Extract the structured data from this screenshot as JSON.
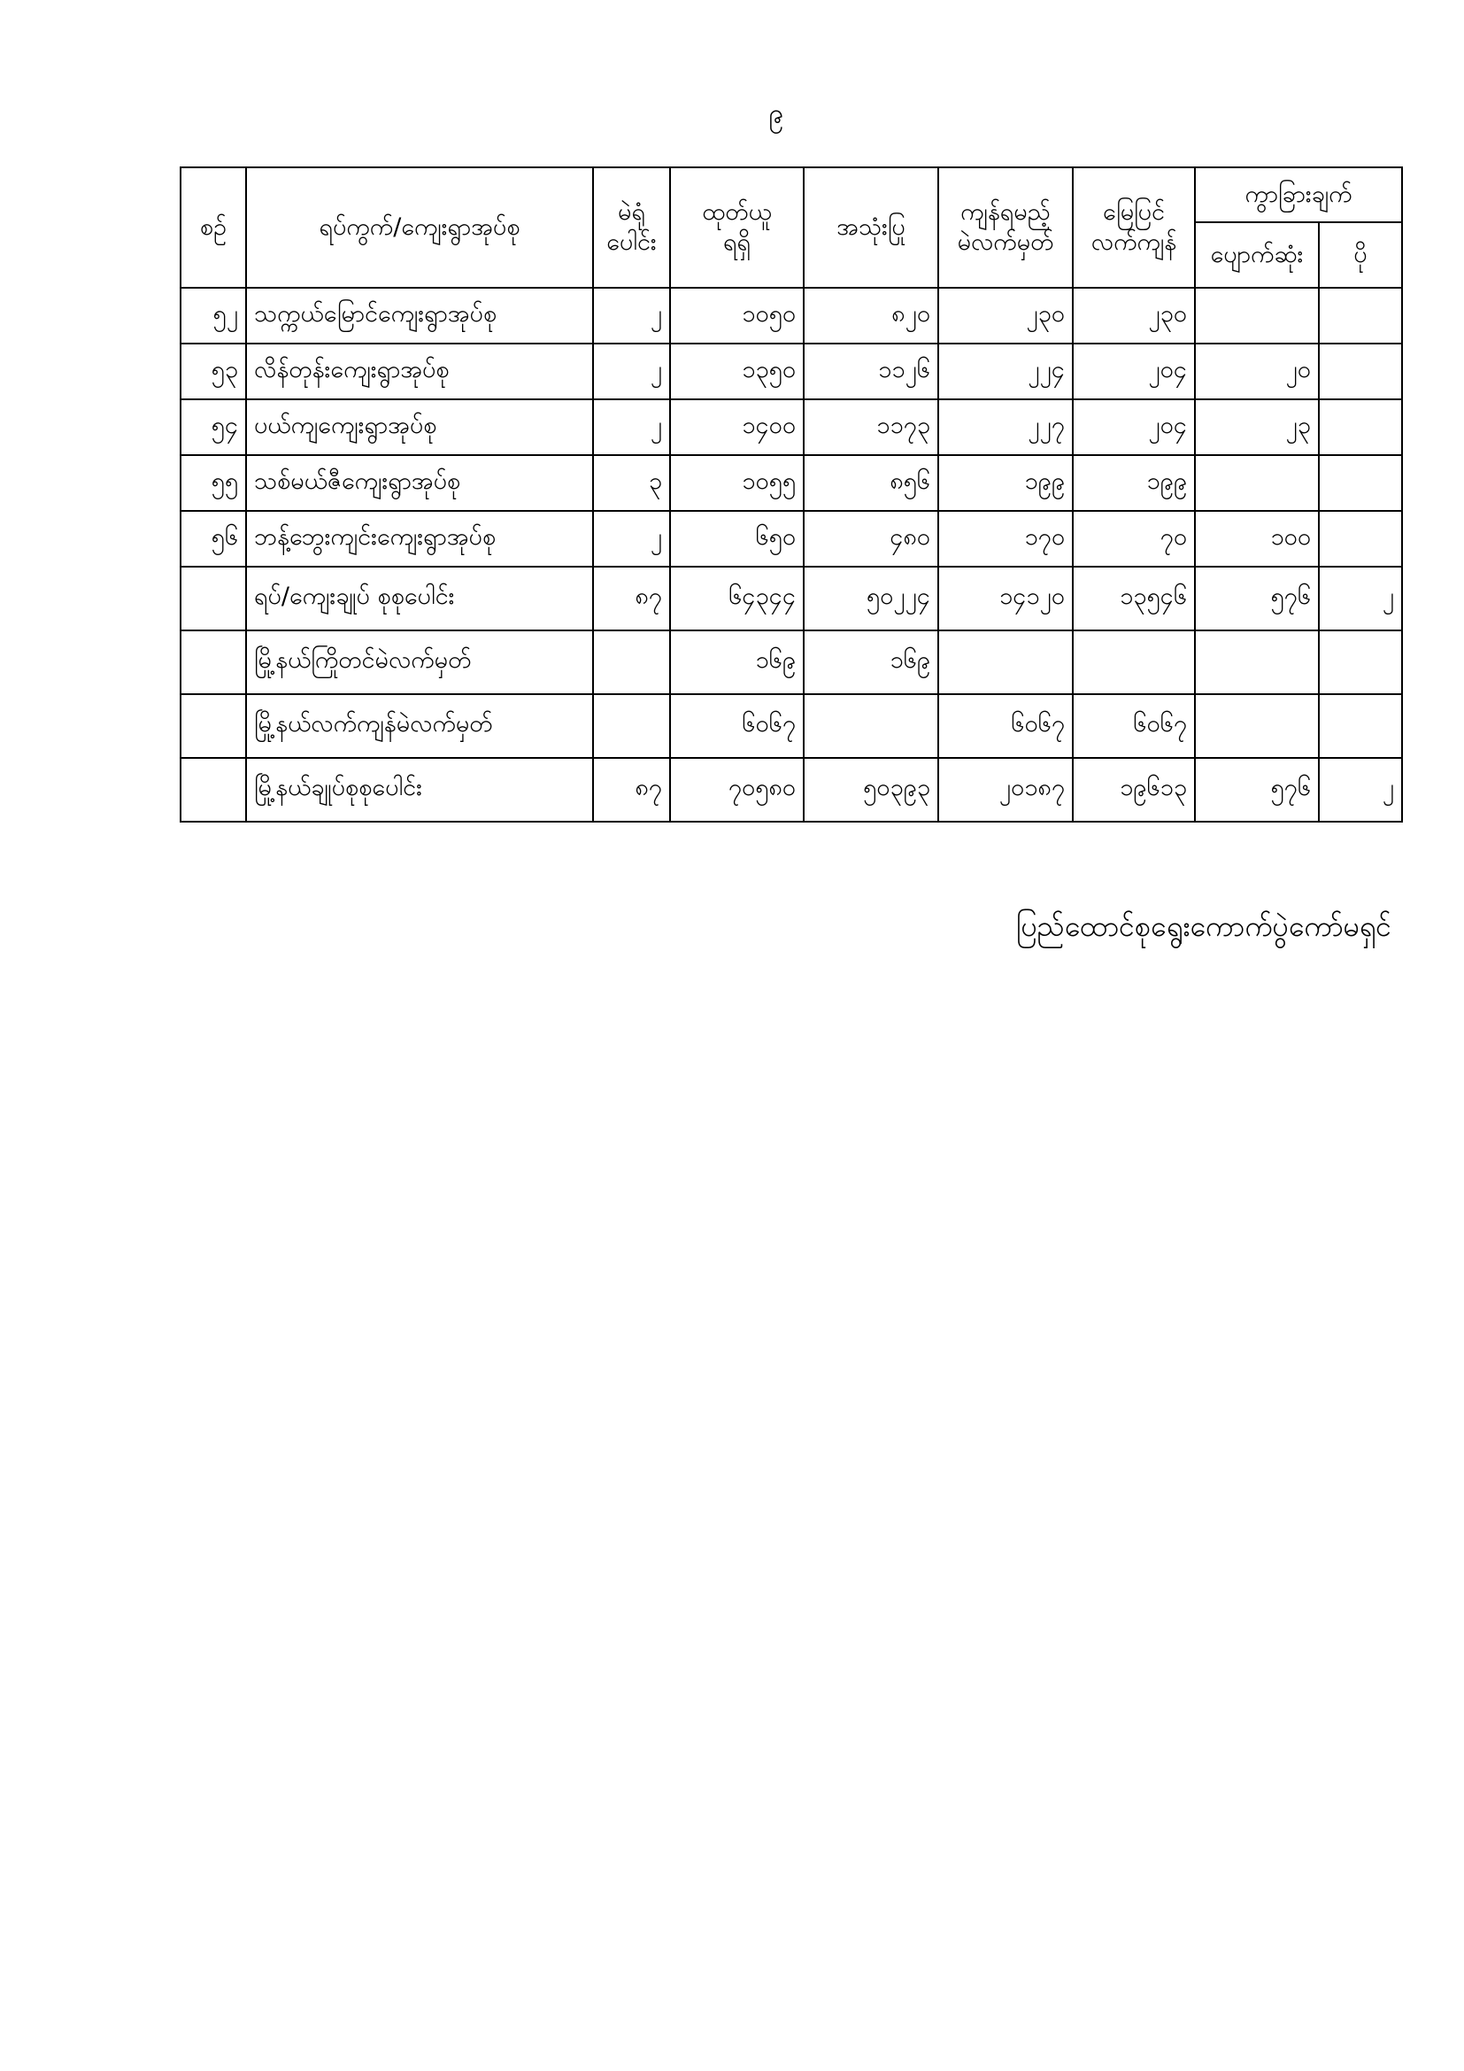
{
  "page_number": "၉",
  "table": {
    "headers": {
      "no": "စဉ်",
      "ward": "ရပ်ကွက်/ကျေးရွာအုပ်စု",
      "stations": [
        "မဲရုံ",
        "ပေါင်း"
      ],
      "received": [
        "ထုတ်ယူ",
        "ရရှိ"
      ],
      "used": "အသုံးပြု",
      "expected_remaining": [
        "ကျန်ရမည့်",
        "မဲလက်မှတ်"
      ],
      "actual_remaining": [
        "မြေပြင်",
        "လက်ကျန်"
      ],
      "difference": "ကွာခြားချက်",
      "missing": "ပျောက်ဆုံး",
      "surplus": "ပို"
    },
    "rows": [
      {
        "no": "၅၂",
        "name": "သက္ကယ်မြောင်ကျေးရွာအုပ်စု",
        "stations": "၂",
        "received": "၁၀၅၀",
        "used": "၈၂၀",
        "expected": "၂၃၀",
        "actual": "၂၃၀",
        "missing": "",
        "surplus": ""
      },
      {
        "no": "၅၃",
        "name": "လိန်တုန်းကျေးရွာအုပ်စု",
        "stations": "၂",
        "received": "၁၃၅၀",
        "used": "၁၁၂၆",
        "expected": "၂၂၄",
        "actual": "၂၀၄",
        "missing": "၂၀",
        "surplus": ""
      },
      {
        "no": "၅၄",
        "name": "ပယ်ကျကျေးရွာအုပ်စု",
        "stations": "၂",
        "received": "၁၄၀၀",
        "used": "၁၁၇၃",
        "expected": "၂၂၇",
        "actual": "၂၀၄",
        "missing": "၂၃",
        "surplus": ""
      },
      {
        "no": "၅၅",
        "name": "သစ်မယ်ဇီကျေးရွာအုပ်စု",
        "stations": "၃",
        "received": "၁၀၅၅",
        "used": "၈၅၆",
        "expected": "၁၉၉",
        "actual": "၁၉၉",
        "missing": "",
        "surplus": ""
      },
      {
        "no": "၅၆",
        "name": "ဘန့်ဘွေးကျင်းကျေးရွာအုပ်စု",
        "stations": "၂",
        "received": "၆၅၀",
        "used": "၄၈၀",
        "expected": "၁၇၀",
        "actual": "၇၀",
        "missing": "၁၀၀",
        "surplus": ""
      }
    ],
    "summary": [
      {
        "no": "",
        "name": "ရပ်/ကျေးချုပ် စုစုပေါင်း",
        "stations": "၈၇",
        "received": "၆၄၃၄၄",
        "used": "၅၀၂၂၄",
        "expected": "၁၄၁၂၀",
        "actual": "၁၃၅၄၆",
        "missing": "၅၇၆",
        "surplus": "၂"
      },
      {
        "no": "",
        "name": "မြို့နယ်ကြိုတင်မဲလက်မှတ်",
        "stations": "",
        "received": "၁၆၉",
        "used": "၁၆၉",
        "expected": "",
        "actual": "",
        "missing": "",
        "surplus": ""
      },
      {
        "no": "",
        "name": "မြို့နယ်လက်ကျန်မဲလက်မှတ်",
        "stations": "",
        "received": "၆၀၆၇",
        "used": "",
        "expected": "၆၀၆၇",
        "actual": "၆၀၆၇",
        "missing": "",
        "surplus": ""
      },
      {
        "no": "",
        "name": "မြို့နယ်ချုပ်စုစုပေါင်း",
        "stations": "၈၇",
        "received": "၇၀၅၈၀",
        "used": "၅၀၃၉၃",
        "expected": "၂၀၁၈၇",
        "actual": "၁၉၆၁၃",
        "missing": "၅၇၆",
        "surplus": "၂"
      }
    ]
  },
  "footer": "ပြည်ထောင်စုရွေးကောက်ပွဲကော်မရှင်"
}
